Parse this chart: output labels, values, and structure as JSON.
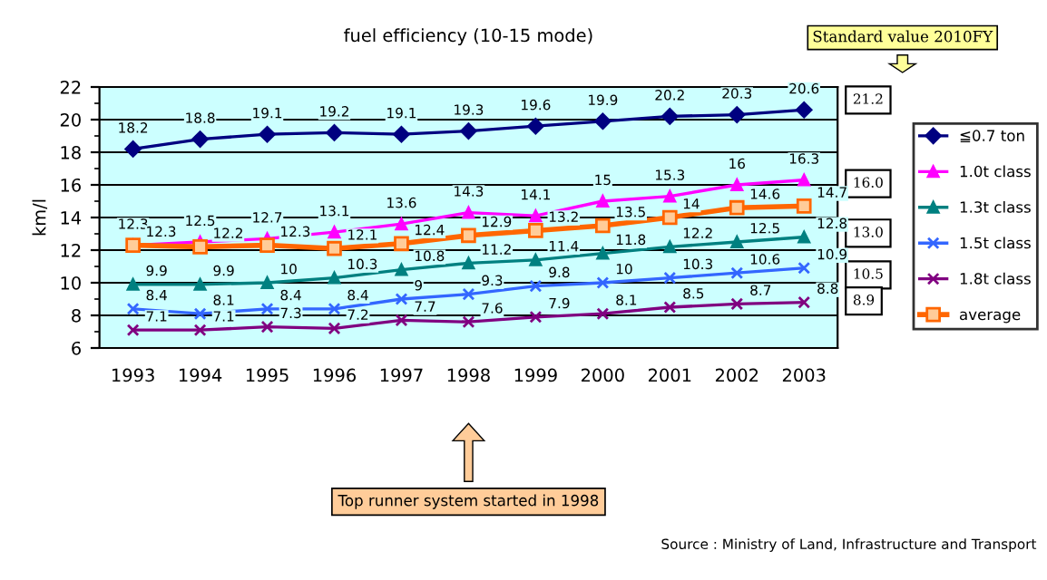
{
  "chart_data": {
    "type": "line",
    "title": "fuel efficiency (10-15 mode)",
    "ylabel": "km/l",
    "categories": [
      "1993",
      "1994",
      "1995",
      "1996",
      "1997",
      "1998",
      "1999",
      "2000",
      "2001",
      "2002",
      "2003"
    ],
    "series": [
      {
        "name": "≦0.7 ton",
        "color": "#000080",
        "marker": "diamond",
        "values": [
          18.2,
          18.8,
          19.1,
          19.2,
          19.1,
          19.3,
          19.6,
          19.9,
          20.2,
          20.3,
          20.6
        ]
      },
      {
        "name": "1.0t class",
        "color": "#ff00ff",
        "marker": "triangle",
        "values": [
          12.3,
          12.5,
          12.7,
          13.1,
          13.6,
          14.3,
          14.1,
          15,
          15.3,
          16,
          16.3
        ]
      },
      {
        "name": "1.3t class",
        "color": "#008080",
        "marker": "triangle",
        "values": [
          9.9,
          9.9,
          10,
          10.3,
          10.8,
          11.2,
          11.4,
          11.8,
          12.2,
          12.5,
          12.8
        ]
      },
      {
        "name": "1.5t class",
        "color": "#3366ff",
        "marker": "cross",
        "values": [
          8.4,
          8.1,
          8.4,
          8.4,
          9,
          9.3,
          9.8,
          10,
          10.3,
          10.6,
          10.9
        ]
      },
      {
        "name": "1.8t class",
        "color": "#800080",
        "marker": "cross",
        "values": [
          7.1,
          7.1,
          7.3,
          7.2,
          7.7,
          7.6,
          7.9,
          8.1,
          8.5,
          8.7,
          8.8
        ]
      },
      {
        "name": "average",
        "color": "#ff6600",
        "marker": "square",
        "values": [
          12.3,
          12.2,
          12.3,
          12.1,
          12.4,
          12.9,
          13.2,
          13.5,
          14,
          14.6,
          14.7
        ]
      }
    ],
    "ylim": [
      6,
      22
    ],
    "yticks": [
      6,
      8,
      10,
      12,
      14,
      16,
      18,
      20,
      22
    ],
    "grid": "y",
    "legend": "right",
    "data_labels": true,
    "annotations": [
      "Standard value 2010FY",
      "21.2",
      "16.0",
      "13.0",
      "10.5",
      "8.9",
      "Top runner system started in 1998",
      "Source : Ministry of Land, Infrastructure and Transport"
    ]
  }
}
